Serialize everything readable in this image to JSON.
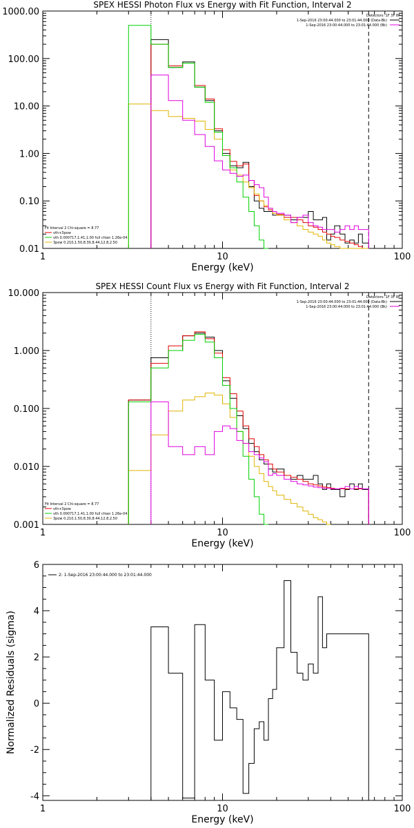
{
  "colors": {
    "black": "#000000",
    "red": "#e00000",
    "green": "#00d000",
    "magenta": "#e000e0",
    "yellow": "#e0b400"
  },
  "chart_data": [
    {
      "type": "line",
      "title": "SPEX HESSI Photon Flux vs Energy with Fit Function, Interval 2",
      "xlabel": "Energy (keV)",
      "ylabel": "",
      "xscale": "log",
      "yscale": "log",
      "xlim": [
        1,
        100
      ],
      "ylim": [
        0.01,
        1000
      ],
      "xticks": [
        "1",
        "10",
        "100"
      ],
      "yticks": [
        "0.01",
        "0.10",
        "1.00",
        "10.00",
        "100.00",
        "1000.00"
      ],
      "vlines": [
        {
          "x": 4,
          "style": "dotted"
        },
        {
          "x": 65,
          "style": "dashed"
        }
      ],
      "legend_topright": {
        "detectors": "Detectors: 1F 3F 8F",
        "entries": [
          "1-Sep-2016 23:00:44.000 to 23:01:44.000 (Data-Bk)",
          "1-Sep-2016 23:00:44.000 to 23:01:44.000 (Bk)"
        ]
      },
      "legend_bottomleft": [
        "Fit Interval 2   Chi-square = 8.77",
        "vth+3pow",
        "vth 0.000717,1.41,1.00  full chian 1.26e-04",
        "3pow 0.210,1.50,8.30,8.44,12.8,2.50"
      ],
      "edges": [
        3,
        4,
        5,
        6,
        7,
        8,
        9,
        10,
        11,
        12,
        13,
        14,
        15,
        16,
        17,
        18,
        19,
        20,
        22,
        24,
        26,
        28,
        30,
        32,
        34,
        36,
        38,
        40,
        42,
        45,
        48,
        51,
        54,
        57,
        60,
        65
      ],
      "series": [
        {
          "name": "Data-Bk",
          "color": "black",
          "values": [
            null,
            250,
            65,
            85,
            25,
            13,
            3.0,
            1.0,
            0.55,
            0.5,
            0.65,
            0.2,
            0.1,
            0.07,
            0.06,
            0.06,
            0.05,
            0.05,
            0.05,
            0.04,
            0.045,
            0.045,
            0.06,
            0.04,
            0.04,
            0.045,
            0.015,
            0.02,
            0.03,
            0.02,
            0.013,
            0.015,
            0.013,
            0.02,
            0.013
          ]
        },
        {
          "name": "vth+3pow",
          "color": "red",
          "values": [
            null,
            200,
            70,
            80,
            27,
            14,
            3.3,
            1.2,
            0.68,
            0.55,
            0.6,
            0.27,
            0.13,
            0.1,
            0.075,
            0.065,
            0.055,
            0.052,
            0.045,
            0.045,
            0.04,
            0.035,
            0.03,
            0.028,
            0.025,
            0.022,
            0.02,
            0.018,
            0.017,
            0.015,
            0.014,
            0.013,
            0.012,
            0.011,
            0.01
          ]
        },
        {
          "name": "vth",
          "color": "green",
          "values": [
            500,
            200,
            65,
            80,
            25,
            12,
            2.8,
            0.9,
            0.5,
            0.25,
            0.12,
            0.06,
            0.03,
            0.015,
            0.01,
            null,
            null,
            null,
            null,
            null,
            null,
            null,
            null,
            null,
            null,
            null,
            null,
            null,
            null,
            null,
            null,
            null,
            null,
            null,
            null
          ]
        },
        {
          "name": "3pow",
          "color": "yellow",
          "values": [
            11,
            8,
            6,
            5.5,
            4.8,
            3.2,
            2.0,
            0.9,
            0.45,
            0.35,
            0.25,
            0.19,
            0.14,
            0.1,
            0.08,
            0.07,
            0.055,
            0.05,
            0.04,
            0.035,
            0.03,
            0.025,
            0.022,
            0.02,
            0.018,
            0.015,
            0.013,
            0.012,
            0.011,
            0.01,
            0.01,
            0.01,
            0.01,
            0.01,
            0.01
          ]
        },
        {
          "name": "Bk",
          "color": "magenta",
          "values": [
            null,
            45,
            13,
            5.0,
            2.5,
            1.4,
            0.7,
            0.45,
            0.38,
            0.33,
            0.35,
            0.27,
            0.22,
            0.19,
            0.12,
            0.07,
            0.06,
            0.055,
            0.05,
            0.035,
            0.045,
            0.05,
            0.035,
            0.03,
            0.028,
            0.025,
            0.025,
            0.025,
            0.022,
            0.025,
            0.03,
            0.025,
            0.03,
            0.025,
            0.025
          ]
        }
      ]
    },
    {
      "type": "line",
      "title": "SPEX HESSI Count Flux vs Energy with Fit Function, Interval 2",
      "xlabel": "Energy (keV)",
      "ylabel": "",
      "xscale": "log",
      "yscale": "log",
      "xlim": [
        1,
        100
      ],
      "ylim": [
        0.001,
        10
      ],
      "xticks": [
        "1",
        "10",
        "100"
      ],
      "yticks": [
        "0.001",
        "0.010",
        "0.100",
        "1.000",
        "10.000"
      ],
      "vlines": [
        {
          "x": 4,
          "style": "dotted"
        },
        {
          "x": 65,
          "style": "dashed"
        }
      ],
      "legend_topright": {
        "detectors": "Detectors: 1F 3F 8F",
        "entries": [
          "1-Sep-2016 23:00:44.000 to 23:01:44.000 (Data-Bk)",
          "1-Sep-2016 23:00:44.000 to 23:01:44.000 (Bk)"
        ]
      },
      "legend_bottomleft": [
        "Fit Interval 2   Chi-square = 8.77",
        "vth+3pow",
        "vth 0.000717,1.41,1.00  full chian 1.26e-04",
        "3pow 0.210,1.50,8.30,8.44,12.8,2.50"
      ],
      "edges": [
        3,
        4,
        5,
        6,
        7,
        8,
        9,
        10,
        11,
        12,
        13,
        14,
        15,
        16,
        17,
        18,
        19,
        20,
        22,
        24,
        26,
        28,
        30,
        32,
        34,
        36,
        38,
        40,
        42,
        45,
        48,
        51,
        54,
        57,
        60,
        65
      ],
      "series": [
        {
          "name": "Data-Bk",
          "color": "black",
          "values": [
            0.14,
            0.75,
            1.0,
            1.8,
            2.0,
            1.7,
            1.0,
            0.3,
            0.15,
            0.075,
            0.045,
            0.025,
            0.018,
            0.013,
            0.011,
            0.009,
            0.008,
            0.009,
            0.007,
            0.006,
            0.007,
            0.006,
            0.006,
            0.007,
            0.005,
            0.004,
            0.005,
            0.004,
            0.004,
            0.003,
            0.004,
            0.005,
            0.004,
            0.005,
            0.004
          ]
        },
        {
          "name": "vth+3pow",
          "color": "red",
          "values": [
            0.14,
            0.6,
            1.2,
            1.8,
            2.1,
            1.6,
            0.9,
            0.34,
            0.18,
            0.09,
            0.05,
            0.03,
            0.022,
            0.016,
            0.013,
            0.011,
            0.009,
            0.008,
            0.007,
            0.0065,
            0.006,
            0.0055,
            0.005,
            0.0048,
            0.0046,
            0.0044,
            0.0043,
            0.0042,
            0.0041,
            0.0041,
            0.0041,
            0.0041,
            0.0041,
            0.0041,
            0.0041
          ]
        },
        {
          "name": "vth",
          "color": "green",
          "values": [
            0.13,
            0.5,
            1.0,
            1.5,
            1.9,
            1.4,
            0.75,
            0.25,
            0.1,
            0.04,
            0.015,
            0.006,
            0.003,
            0.0015,
            0.001,
            null,
            null,
            null,
            null,
            null,
            null,
            null,
            null,
            null,
            null,
            null,
            null,
            null,
            null,
            null,
            null,
            null,
            null,
            null,
            null
          ]
        },
        {
          "name": "3pow",
          "color": "yellow",
          "values": [
            0.0085,
            0.035,
            0.09,
            0.14,
            0.16,
            0.185,
            0.17,
            0.12,
            0.07,
            0.04,
            0.025,
            0.015,
            0.01,
            0.0075,
            0.0055,
            0.0045,
            0.0038,
            0.0032,
            0.0027,
            0.0023,
            0.002,
            0.0017,
            0.0015,
            0.0013,
            0.0012,
            0.0011,
            0.001,
            null,
            null,
            null,
            null,
            null,
            null,
            null,
            null
          ]
        },
        {
          "name": "Bk",
          "color": "magenta",
          "values": [
            null,
            0.13,
            0.022,
            0.016,
            0.022,
            0.016,
            0.04,
            0.05,
            0.045,
            0.028,
            0.025,
            0.018,
            0.016,
            0.014,
            0.012,
            0.007,
            0.0075,
            0.007,
            0.006,
            0.0055,
            0.005,
            0.0048,
            0.0046,
            0.0044,
            0.0043,
            0.0042,
            0.0042,
            0.0041,
            0.0041,
            0.0042,
            0.0045,
            0.0041,
            0.0045,
            0.0042,
            0.0041
          ]
        }
      ]
    },
    {
      "type": "line",
      "title": "",
      "xlabel": "Energy (keV)",
      "ylabel": "Normalized Residuals (sigma)",
      "xscale": "log",
      "yscale": "linear",
      "xlim": [
        1,
        100
      ],
      "ylim": [
        -4.2,
        6
      ],
      "xticks": [
        "1",
        "10",
        "100"
      ],
      "yticks": [
        "-4",
        "-2",
        "0",
        "2",
        "4",
        "6"
      ],
      "legend_topleft": [
        "2:  1-Sep-2016 23:00:44.000 to 23:01:44.000"
      ],
      "edges": [
        4,
        5,
        6,
        7,
        8,
        9,
        10,
        11,
        12,
        13,
        14,
        15,
        16,
        17,
        18,
        19,
        20,
        22,
        24,
        26,
        28,
        30,
        32,
        34,
        36,
        38,
        40,
        42,
        45,
        48,
        51,
        54,
        57,
        60,
        65
      ],
      "series": [
        {
          "name": "residuals",
          "color": "black",
          "values": [
            3.3,
            1.3,
            -4.1,
            3.4,
            1.0,
            -1.6,
            0.5,
            -0.2,
            -0.7,
            -3.9,
            -2.6,
            -1.1,
            -0.8,
            -1.6,
            0.2,
            0.6,
            2.4,
            5.3,
            2.2,
            1.3,
            1.0,
            1.7,
            1.3,
            4.6,
            2.4,
            3.0,
            3.0,
            3.0,
            3.0,
            3.0,
            3.0,
            3.0,
            3.0,
            3.0
          ]
        }
      ]
    }
  ]
}
